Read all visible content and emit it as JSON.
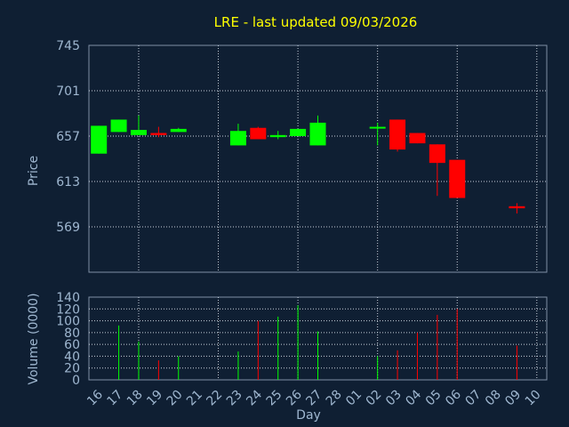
{
  "chart_data": [
    {
      "type": "candlestick",
      "title": "LRE - last updated 09/03/2026",
      "xlabel": "",
      "ylabel": "Price",
      "ylim": [
        525,
        745
      ],
      "yticks": [
        "745",
        "701",
        "657",
        "613",
        "569"
      ],
      "categories": [
        "16",
        "17",
        "18",
        "19",
        "20",
        "21",
        "22",
        "23",
        "24",
        "25",
        "26",
        "27",
        "28",
        "01",
        "02",
        "03",
        "04",
        "05",
        "06",
        "07",
        "08",
        "09",
        "10"
      ],
      "up_color": "#00ff00",
      "down_color": "#ff0000",
      "grid": true,
      "candles": [
        {
          "day": "16",
          "open": 640,
          "high": 667,
          "low": 640,
          "close": 667
        },
        {
          "day": "17",
          "open": 661,
          "high": 673,
          "low": 661,
          "close": 673
        },
        {
          "day": "18",
          "open": 658,
          "high": 677,
          "low": 658,
          "close": 663
        },
        {
          "day": "19",
          "open": 660,
          "high": 666,
          "low": 656,
          "close": 658
        },
        {
          "day": "20",
          "open": 661,
          "high": 665,
          "low": 661,
          "close": 664
        },
        {
          "day": "23",
          "open": 648,
          "high": 669,
          "low": 648,
          "close": 662
        },
        {
          "day": "24",
          "open": 665,
          "high": 666,
          "low": 654,
          "close": 654
        },
        {
          "day": "25",
          "open": 656,
          "high": 662,
          "low": 654,
          "close": 658
        },
        {
          "day": "26",
          "open": 657,
          "high": 664,
          "low": 657,
          "close": 664
        },
        {
          "day": "27",
          "open": 648,
          "high": 677,
          "low": 648,
          "close": 670
        },
        {
          "day": "02",
          "open": 666,
          "high": 670,
          "low": 648,
          "close": 666
        },
        {
          "day": "03",
          "open": 673,
          "high": 673,
          "low": 642,
          "close": 644
        },
        {
          "day": "04",
          "open": 660,
          "high": 660,
          "low": 650,
          "close": 650
        },
        {
          "day": "05",
          "open": 649,
          "high": 649,
          "low": 599,
          "close": 631
        },
        {
          "day": "06",
          "open": 634,
          "high": 634,
          "low": 597,
          "close": 597
        },
        {
          "day": "09",
          "open": 589,
          "high": 592,
          "low": 582,
          "close": 587
        }
      ]
    },
    {
      "type": "bar",
      "xlabel": "Day",
      "ylabel": "Volume (0000)",
      "ylim": [
        0,
        140
      ],
      "yticks": [
        "140",
        "120",
        "100",
        "80",
        "60",
        "40",
        "20",
        "0"
      ],
      "categories": [
        "16",
        "17",
        "18",
        "19",
        "20",
        "21",
        "22",
        "23",
        "24",
        "25",
        "26",
        "27",
        "28",
        "01",
        "02",
        "03",
        "04",
        "05",
        "06",
        "07",
        "08",
        "09",
        "10"
      ],
      "volumes": [
        {
          "day": "17",
          "value": 92,
          "dir": "up"
        },
        {
          "day": "18",
          "value": 65,
          "dir": "up"
        },
        {
          "day": "19",
          "value": 33,
          "dir": "down"
        },
        {
          "day": "20",
          "value": 40,
          "dir": "up"
        },
        {
          "day": "23",
          "value": 48,
          "dir": "up"
        },
        {
          "day": "24",
          "value": 100,
          "dir": "down"
        },
        {
          "day": "25",
          "value": 107,
          "dir": "up"
        },
        {
          "day": "26",
          "value": 126,
          "dir": "up"
        },
        {
          "day": "27",
          "value": 82,
          "dir": "up"
        },
        {
          "day": "02",
          "value": 40,
          "dir": "up"
        },
        {
          "day": "03",
          "value": 50,
          "dir": "down"
        },
        {
          "day": "04",
          "value": 80,
          "dir": "down"
        },
        {
          "day": "05",
          "value": 110,
          "dir": "down"
        },
        {
          "day": "06",
          "value": 120,
          "dir": "down"
        },
        {
          "day": "09",
          "value": 58,
          "dir": "down"
        }
      ]
    }
  ]
}
